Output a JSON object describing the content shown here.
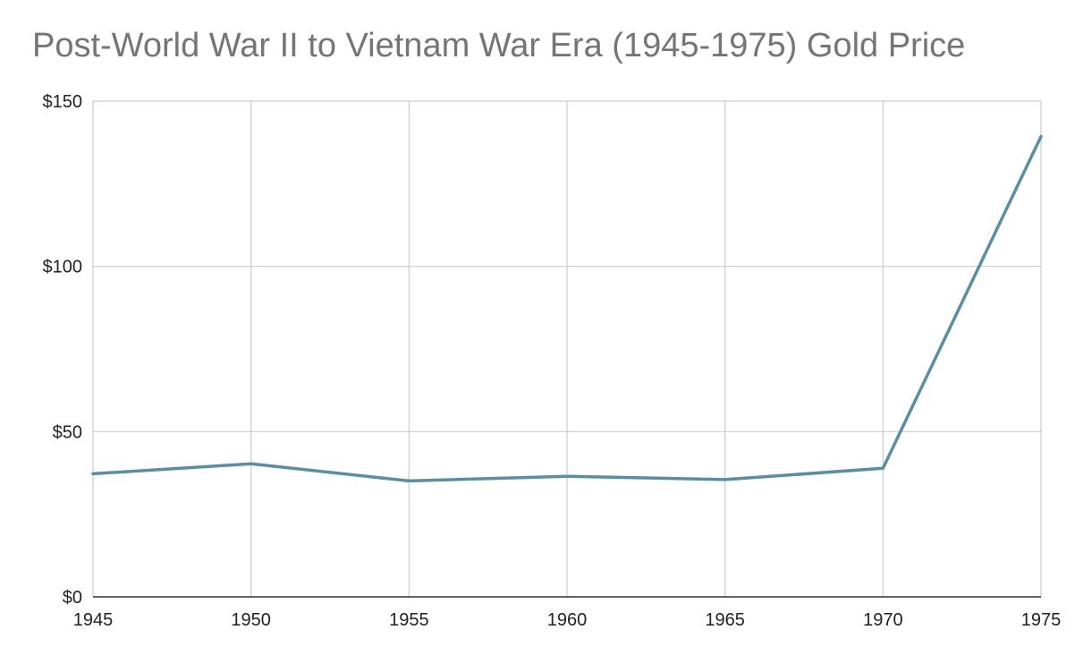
{
  "chart_data": {
    "type": "line",
    "title": "Post-World War II to Vietnam War Era (1945-1975) Gold Price",
    "xlabel": "",
    "ylabel": "",
    "x": [
      1945,
      1950,
      1955,
      1960,
      1965,
      1970,
      1975
    ],
    "x_tick_labels": [
      "1945",
      "1950",
      "1955",
      "1960",
      "1965",
      "1970",
      "1975"
    ],
    "y_tick_values": [
      0,
      50,
      100,
      150
    ],
    "y_tick_labels": [
      "$0",
      "$50",
      "$100",
      "$150"
    ],
    "ylim": [
      0,
      150
    ],
    "xlim": [
      1945,
      1975
    ],
    "grid": true,
    "legend": "none",
    "series": [
      {
        "values": [
          37.25,
          40.25,
          35.1,
          36.5,
          35.5,
          38.9,
          139.3
        ],
        "color": "#5b8ea3"
      }
    ],
    "colors": {
      "grid": "#cccccc",
      "axis": "#333333",
      "title": "#757575",
      "tick_text": "#222222"
    }
  }
}
